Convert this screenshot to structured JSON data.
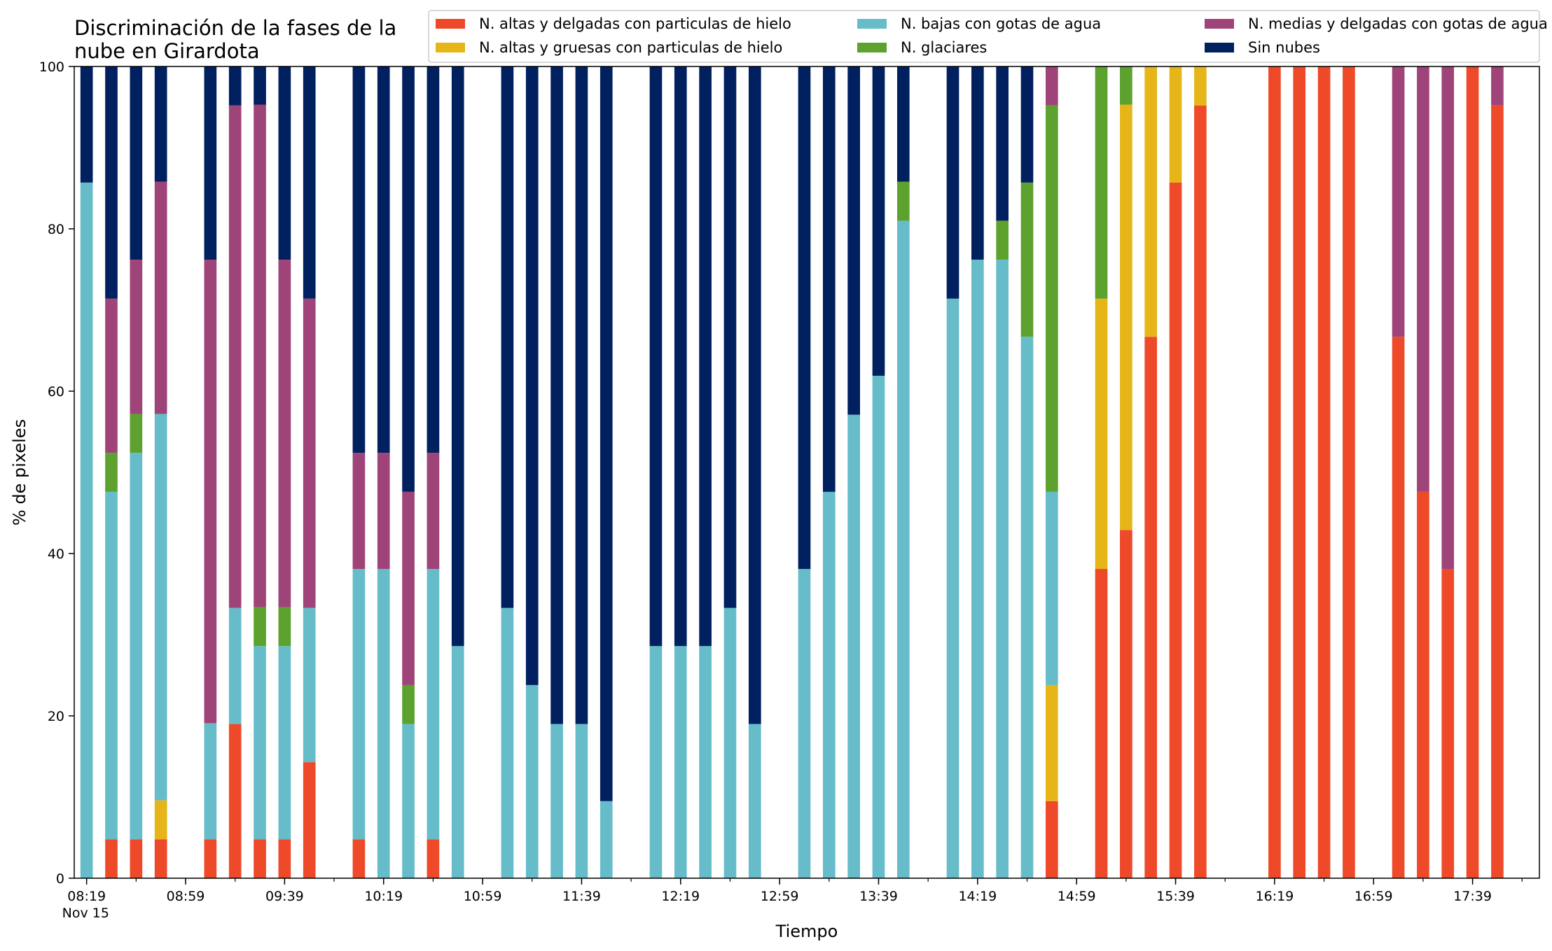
{
  "chart_data": {
    "type": "bar",
    "stacked": true,
    "title_lines": [
      "Discriminación de la fases de la",
      "nube en Girardota"
    ],
    "xlabel": "Tiempo",
    "ylabel": "% de pixeles",
    "ylim": [
      0,
      100
    ],
    "yticks": [
      0,
      20,
      40,
      60,
      80,
      100
    ],
    "xlim": [
      0,
      59.2
    ],
    "xticks": [
      {
        "index": 0,
        "label": "08:19",
        "sublabel": "Nov 15"
      },
      {
        "index": 4,
        "label": "08:59"
      },
      {
        "index": 8,
        "label": "09:39"
      },
      {
        "index": 12,
        "label": "10:19"
      },
      {
        "index": 16,
        "label": "10:59"
      },
      {
        "index": 20,
        "label": "11:39"
      },
      {
        "index": 24,
        "label": "12:19"
      },
      {
        "index": 28,
        "label": "12:59"
      },
      {
        "index": 32,
        "label": "13:39"
      },
      {
        "index": 36,
        "label": "14:19"
      },
      {
        "index": 40,
        "label": "14:59"
      },
      {
        "index": 44,
        "label": "15:39"
      },
      {
        "index": 48,
        "label": "16:19"
      },
      {
        "index": 52,
        "label": "16:59"
      },
      {
        "index": 56,
        "label": "17:39"
      }
    ],
    "grid": false,
    "legend_position": "top-right",
    "legend_order": [
      0,
      1,
      2,
      3,
      4,
      5
    ],
    "series": [
      {
        "name": "N. altas y delgadas con particulas de hielo",
        "color": "#ee4a2a"
      },
      {
        "name": "N. altas y gruesas con particulas de hielo",
        "color": "#e6b619"
      },
      {
        "name": "N. bajas con gotas de agua",
        "color": "#66bdc9"
      },
      {
        "name": "N. glaciares",
        "color": "#5da12e"
      },
      {
        "name": "N. medias y delgadas con gotas de agua",
        "color": "#9f4479"
      },
      {
        "name": "Sin nubes",
        "color": "#012060"
      }
    ],
    "bars": [
      {
        "index": 0,
        "values": [
          0,
          0,
          85.7,
          0,
          0,
          14.3
        ]
      },
      {
        "index": 1,
        "values": [
          4.8,
          0,
          42.8,
          4.8,
          19.0,
          28.6
        ]
      },
      {
        "index": 2,
        "values": [
          4.8,
          0,
          47.6,
          4.8,
          19.0,
          23.8
        ]
      },
      {
        "index": 3,
        "values": [
          4.8,
          4.8,
          47.6,
          0,
          28.6,
          14.2
        ]
      },
      {
        "index": 5,
        "values": [
          4.8,
          0,
          14.3,
          0,
          57.1,
          23.8
        ]
      },
      {
        "index": 6,
        "values": [
          19.0,
          0,
          14.3,
          0,
          61.9,
          4.8
        ]
      },
      {
        "index": 7,
        "values": [
          4.8,
          0,
          23.8,
          4.8,
          61.9,
          4.7
        ]
      },
      {
        "index": 8,
        "values": [
          4.8,
          0,
          23.8,
          4.8,
          42.8,
          23.8
        ]
      },
      {
        "index": 9,
        "values": [
          14.3,
          0,
          19.0,
          0,
          38.1,
          28.6
        ]
      },
      {
        "index": 11,
        "values": [
          4.8,
          0,
          33.3,
          0,
          14.3,
          47.6
        ]
      },
      {
        "index": 12,
        "values": [
          0,
          0,
          38.1,
          0,
          14.3,
          47.6
        ]
      },
      {
        "index": 13,
        "values": [
          0,
          0,
          19.0,
          4.8,
          23.8,
          52.4
        ]
      },
      {
        "index": 14,
        "values": [
          4.8,
          0,
          33.3,
          0,
          14.3,
          47.6
        ]
      },
      {
        "index": 15,
        "values": [
          0,
          0,
          28.6,
          0,
          0,
          71.4
        ]
      },
      {
        "index": 17,
        "values": [
          0,
          0,
          33.3,
          0,
          0,
          66.7
        ]
      },
      {
        "index": 18,
        "values": [
          0,
          0,
          23.8,
          0,
          0,
          76.2
        ]
      },
      {
        "index": 19,
        "values": [
          0,
          0,
          19.0,
          0,
          0,
          81.0
        ]
      },
      {
        "index": 20,
        "values": [
          0,
          0,
          19.0,
          0,
          0,
          81.0
        ]
      },
      {
        "index": 21,
        "values": [
          0,
          0,
          9.5,
          0,
          0,
          90.5
        ]
      },
      {
        "index": 23,
        "values": [
          0,
          0,
          28.6,
          0,
          0,
          71.4
        ]
      },
      {
        "index": 24,
        "values": [
          0,
          0,
          28.6,
          0,
          0,
          71.4
        ]
      },
      {
        "index": 25,
        "values": [
          0,
          0,
          28.6,
          0,
          0,
          71.4
        ]
      },
      {
        "index": 26,
        "values": [
          0,
          0,
          33.3,
          0,
          0,
          66.7
        ]
      },
      {
        "index": 27,
        "values": [
          0,
          0,
          19.0,
          0,
          0,
          81.0
        ]
      },
      {
        "index": 29,
        "values": [
          0,
          0,
          38.1,
          0,
          0,
          61.9
        ]
      },
      {
        "index": 30,
        "values": [
          0,
          0,
          47.6,
          0,
          0,
          52.4
        ]
      },
      {
        "index": 31,
        "values": [
          0,
          0,
          57.1,
          0,
          0,
          42.9
        ]
      },
      {
        "index": 32,
        "values": [
          0,
          0,
          61.9,
          0,
          0,
          38.1
        ]
      },
      {
        "index": 33,
        "values": [
          0,
          0,
          81.0,
          4.8,
          0,
          14.2
        ]
      },
      {
        "index": 35,
        "values": [
          0,
          0,
          71.4,
          0,
          0,
          28.6
        ]
      },
      {
        "index": 36,
        "values": [
          0,
          0,
          76.2,
          0,
          0,
          23.8
        ]
      },
      {
        "index": 37,
        "values": [
          0,
          0,
          76.2,
          4.8,
          0,
          19.0
        ]
      },
      {
        "index": 38,
        "values": [
          0,
          0,
          66.7,
          19.0,
          0,
          14.3
        ]
      },
      {
        "index": 39,
        "values": [
          9.5,
          14.3,
          23.8,
          47.6,
          4.8,
          0
        ]
      },
      {
        "index": 41,
        "values": [
          38.1,
          33.3,
          0,
          28.6,
          0,
          0
        ]
      },
      {
        "index": 42,
        "values": [
          42.9,
          52.4,
          0,
          4.7,
          0,
          0
        ]
      },
      {
        "index": 43,
        "values": [
          66.7,
          33.3,
          0,
          0,
          0,
          0
        ]
      },
      {
        "index": 44,
        "values": [
          85.7,
          14.3,
          0,
          0,
          0,
          0
        ]
      },
      {
        "index": 45,
        "values": [
          95.2,
          4.8,
          0,
          0,
          0,
          0
        ]
      },
      {
        "index": 48,
        "values": [
          100,
          0,
          0,
          0,
          0,
          0
        ]
      },
      {
        "index": 49,
        "values": [
          100,
          0,
          0,
          0,
          0,
          0
        ]
      },
      {
        "index": 50,
        "values": [
          100,
          0,
          0,
          0,
          0,
          0
        ]
      },
      {
        "index": 51,
        "values": [
          100,
          0,
          0,
          0,
          0,
          0
        ]
      },
      {
        "index": 53,
        "values": [
          66.7,
          0,
          0,
          0,
          33.3,
          0
        ]
      },
      {
        "index": 54,
        "values": [
          47.6,
          0,
          0,
          0,
          52.4,
          0
        ]
      },
      {
        "index": 55,
        "values": [
          38.1,
          0,
          0,
          0,
          61.9,
          0
        ]
      },
      {
        "index": 56,
        "values": [
          100,
          0,
          0,
          0,
          0,
          0
        ]
      },
      {
        "index": 57,
        "values": [
          95.2,
          0,
          0,
          0,
          4.8,
          0
        ]
      }
    ]
  }
}
